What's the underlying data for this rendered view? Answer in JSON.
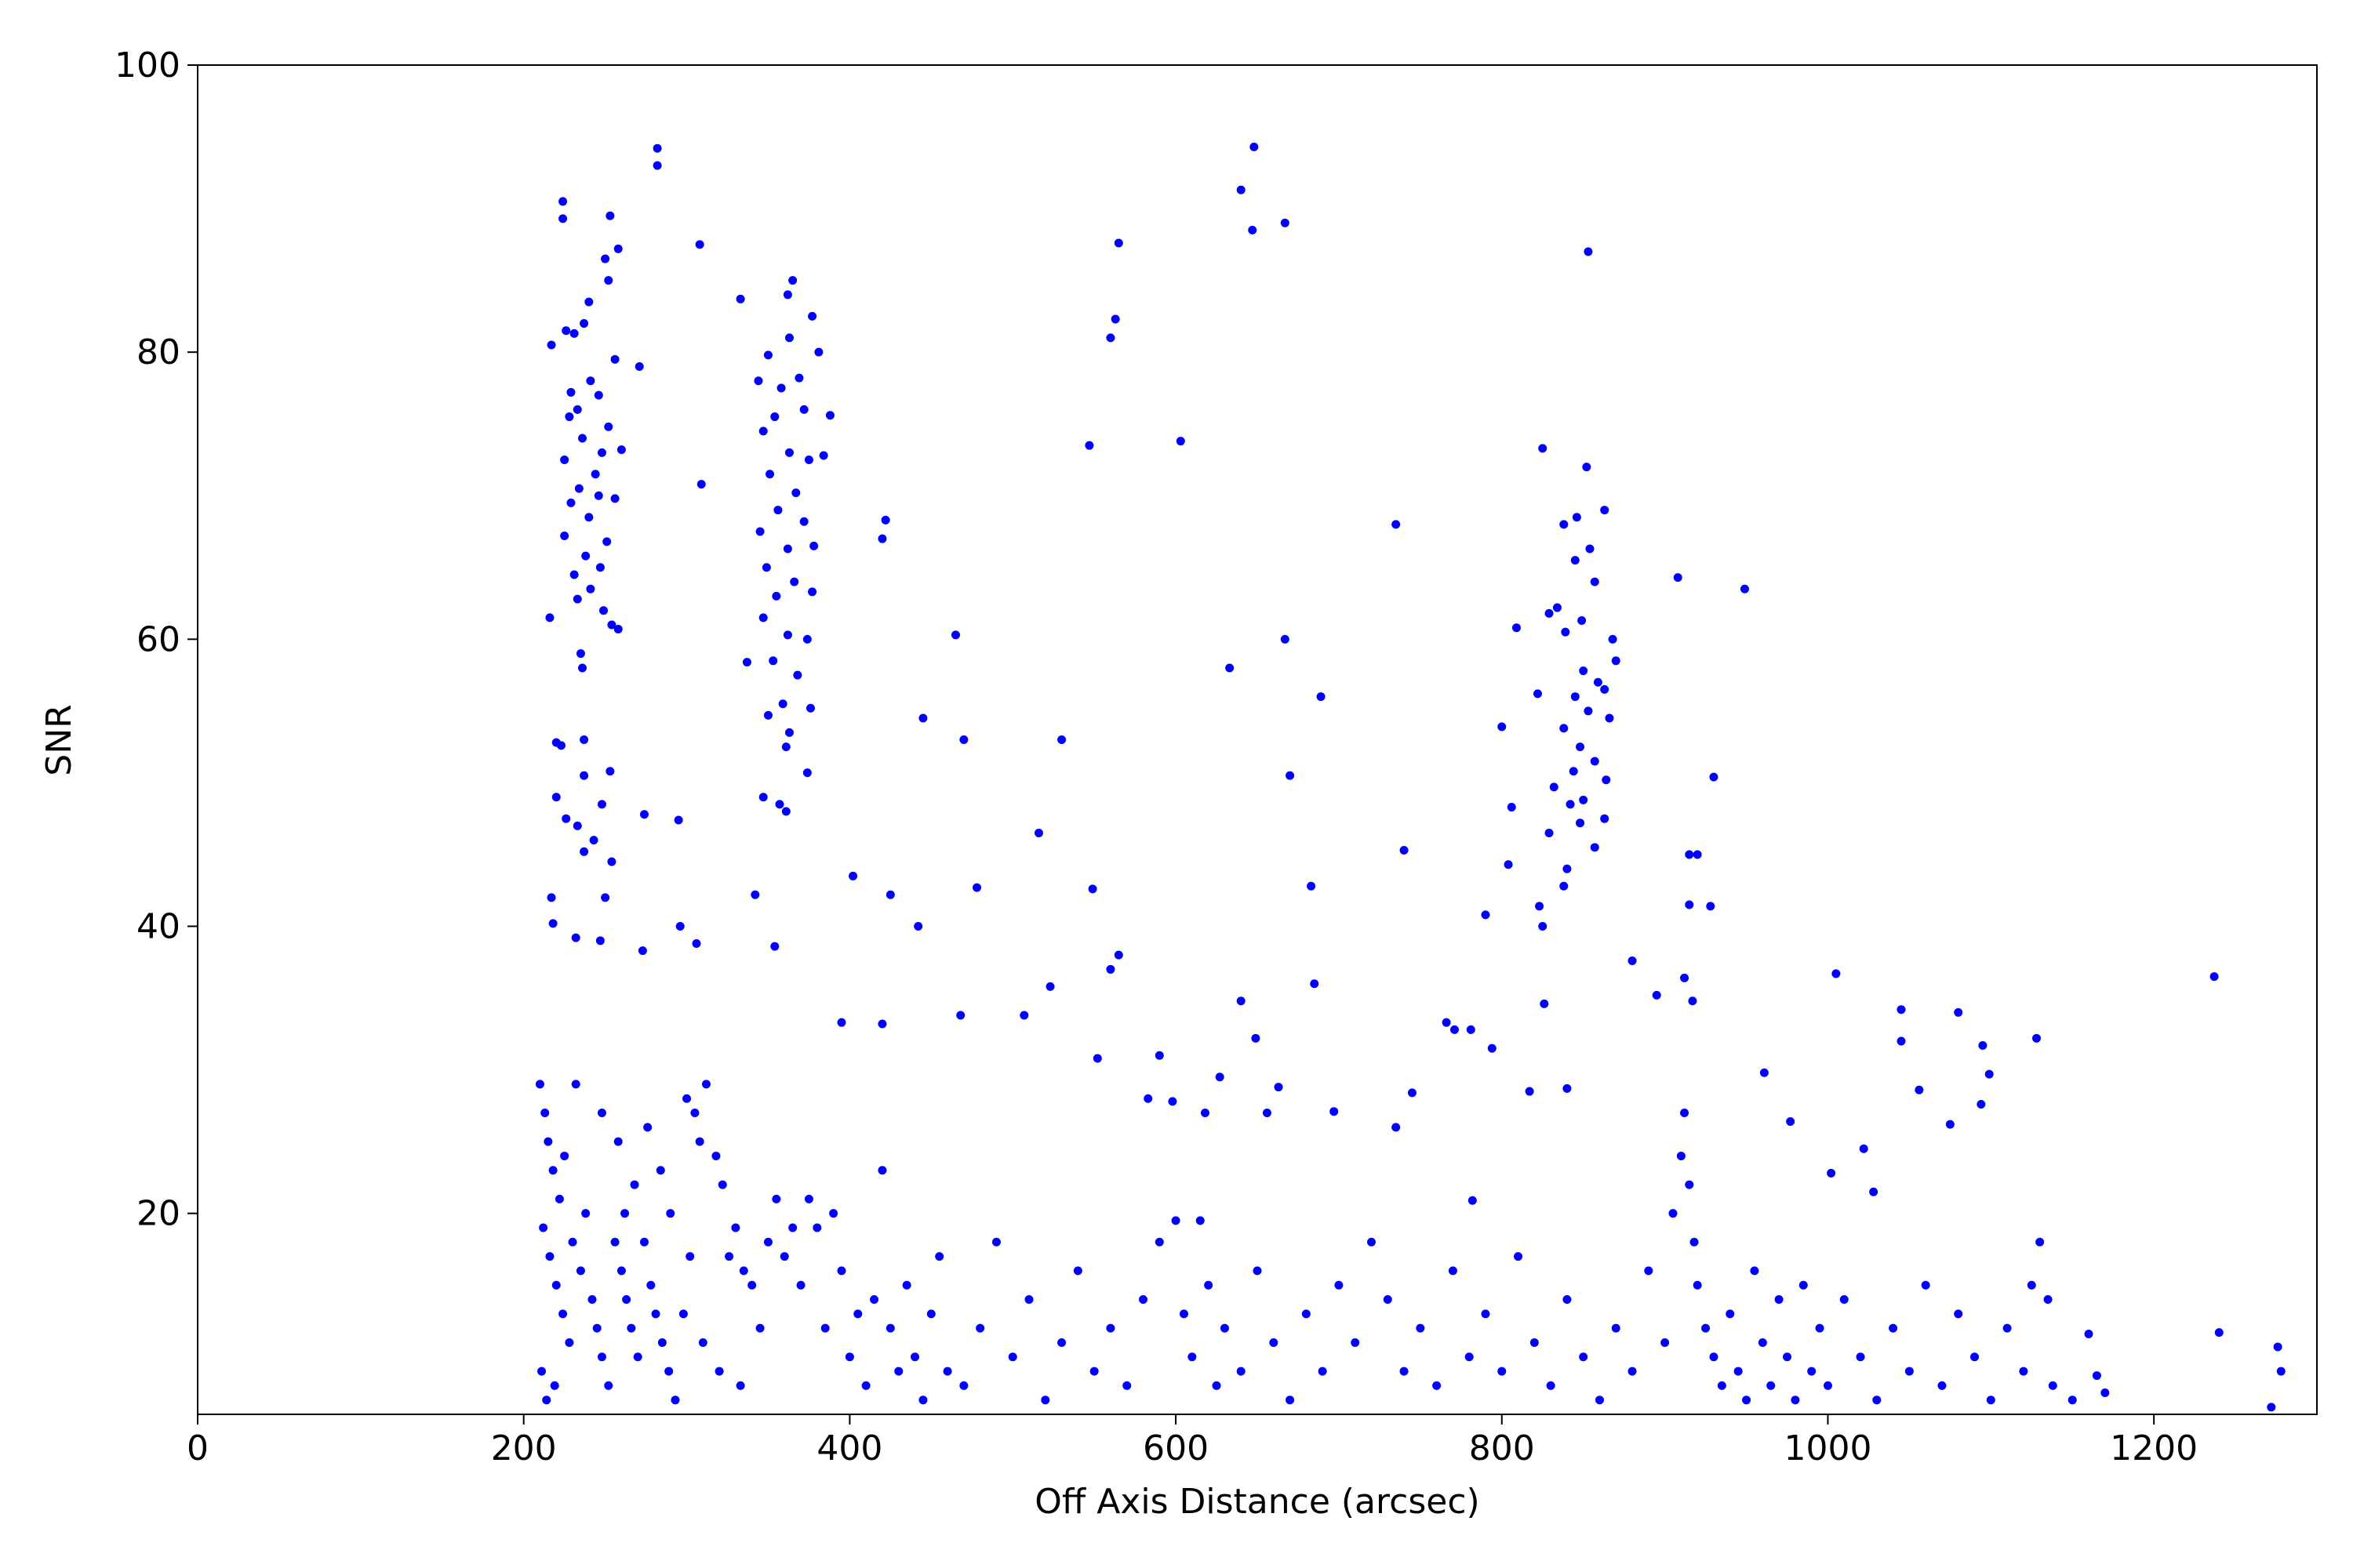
{
  "chart_data": {
    "type": "scatter",
    "x_label": "Off Axis Distance (arcsec)",
    "y_label": "SNR",
    "color": "#0000ff",
    "xlim": [
      0,
      1300
    ],
    "ylim": [
      6,
      100
    ],
    "xticks": [
      0,
      200,
      400,
      600,
      800,
      1000,
      1200
    ],
    "yticks": [
      20,
      40,
      60,
      80,
      100
    ],
    "x": [
      224,
      224,
      253,
      258,
      250,
      252,
      240,
      237,
      226,
      231,
      217,
      256,
      271,
      241,
      229,
      246,
      233,
      228,
      252,
      236,
      248,
      260,
      225,
      244,
      234,
      246,
      229,
      256,
      240,
      225,
      251,
      238,
      247,
      231,
      241,
      233,
      249,
      235,
      236,
      254,
      258,
      216,
      282,
      282,
      220,
      237,
      223,
      253,
      237,
      220,
      226,
      248,
      233,
      274,
      243,
      254,
      237,
      295,
      217,
      250,
      232,
      218,
      247,
      296,
      273,
      306,
      308,
      333,
      365,
      362,
      350,
      363,
      377,
      344,
      358,
      369,
      381,
      354,
      372,
      347,
      388,
      363,
      375,
      351,
      367,
      384,
      309,
      356,
      372,
      345,
      362,
      378,
      349,
      366,
      355,
      377,
      347,
      362,
      374,
      353,
      337,
      368,
      359,
      350,
      376,
      363,
      361,
      374,
      347,
      357,
      361,
      342,
      354,
      825,
      852,
      863,
      846,
      838,
      854,
      845,
      857,
      834,
      829,
      849,
      839,
      868,
      870,
      809,
      850,
      859,
      863,
      845,
      822,
      853,
      866,
      838,
      800,
      848,
      857,
      844,
      832,
      864,
      850,
      842,
      863,
      829,
      848,
      857,
      840,
      804,
      823,
      838,
      825,
      806,
      826,
      465,
      420,
      422,
      445,
      470,
      530,
      516,
      402,
      425,
      478,
      442,
      549,
      560,
      563,
      565,
      547,
      603,
      640,
      648,
      647,
      667,
      633,
      667,
      670,
      689,
      735,
      740,
      683,
      790,
      853,
      908,
      949,
      930,
      915,
      920,
      915,
      928,
      880,
      912,
      895,
      917,
      1005,
      1237,
      1045,
      1045,
      1080,
      1095,
      1128,
      1099,
      1056,
      1094,
      1075,
      1022,
      1028,
      565,
      560,
      523,
      507,
      468,
      420,
      395,
      590,
      552,
      583,
      598,
      618,
      627,
      656,
      663,
      640,
      649,
      685,
      697,
      766,
      781,
      794,
      771,
      817,
      840,
      782,
      745,
      961,
      977,
      1002,
      1240,
      1276,
      1278,
      1272,
      1160,
      1165,
      1170,
      1150,
      210,
      213,
      215,
      218,
      222,
      225,
      212,
      216,
      220,
      224,
      228,
      211,
      214,
      219,
      230,
      235,
      238,
      242,
      245,
      248,
      252,
      256,
      260,
      263,
      266,
      270,
      274,
      278,
      281,
      285,
      289,
      293,
      262,
      268,
      232,
      248,
      258,
      276,
      284,
      290,
      300,
      305,
      308,
      312,
      318,
      322,
      326,
      330,
      335,
      340,
      302,
      298,
      310,
      320,
      333,
      345,
      350,
      355,
      360,
      365,
      370,
      375,
      380,
      385,
      390,
      395,
      400,
      405,
      410,
      415,
      420,
      425,
      430,
      435,
      440,
      445,
      450,
      455,
      460,
      470,
      480,
      490,
      500,
      510,
      520,
      530,
      540,
      550,
      560,
      570,
      580,
      590,
      600,
      605,
      610,
      615,
      620,
      625,
      630,
      640,
      650,
      660,
      670,
      680,
      690,
      700,
      710,
      720,
      730,
      735,
      740,
      750,
      760,
      770,
      780,
      790,
      800,
      810,
      820,
      830,
      840,
      850,
      860,
      870,
      880,
      890,
      900,
      905,
      910,
      912,
      915,
      918,
      920,
      925,
      930,
      935,
      940,
      945,
      950,
      955,
      960,
      965,
      970,
      975,
      980,
      985,
      990,
      995,
      1000,
      1010,
      1020,
      1030,
      1040,
      1050,
      1060,
      1070,
      1080,
      1090,
      1100,
      1110,
      1120,
      1125,
      1130,
      1135,
      1138
    ],
    "values": [
      90.5,
      89.3,
      89.5,
      87.2,
      86.5,
      85,
      83.5,
      82,
      81.5,
      81.3,
      80.5,
      79.5,
      79,
      78,
      77.2,
      77,
      76,
      75.5,
      74.8,
      74,
      73,
      73.2,
      72.5,
      71.5,
      70.5,
      70,
      69.5,
      69.8,
      68.5,
      67.2,
      66.8,
      65.8,
      65,
      64.5,
      63.5,
      62.8,
      62,
      59,
      58,
      61,
      60.7,
      61.5,
      94.2,
      93,
      52.8,
      53,
      52.6,
      50.8,
      50.5,
      49,
      47.5,
      48.5,
      47,
      47.8,
      46,
      44.5,
      45.2,
      47.4,
      42,
      42,
      39.2,
      40.2,
      39,
      40,
      38.3,
      38.8,
      87.5,
      83.7,
      85,
      84,
      79.8,
      81,
      82.5,
      78,
      77.5,
      78.2,
      80,
      75.5,
      76,
      74.5,
      75.6,
      73,
      72.5,
      71.5,
      70.2,
      72.8,
      70.8,
      69,
      68.2,
      67.5,
      66.3,
      66.5,
      65,
      64,
      63,
      63.3,
      61.5,
      60.3,
      60,
      58.5,
      58.4,
      57.5,
      55.5,
      54.7,
      55.2,
      53.5,
      52.5,
      50.7,
      49,
      48.5,
      48,
      42.2,
      38.6,
      73.3,
      72,
      69,
      68.5,
      68,
      66.3,
      65.5,
      64,
      62.2,
      61.8,
      61.3,
      60.5,
      60,
      58.5,
      60.8,
      57.8,
      57,
      56.5,
      56,
      56.2,
      55,
      54.5,
      53.8,
      53.9,
      52.5,
      51.5,
      50.8,
      49.7,
      50.2,
      48.8,
      48.5,
      47.5,
      46.5,
      47.2,
      45.5,
      44,
      44.3,
      41.4,
      42.8,
      40,
      48.3,
      34.6,
      60.3,
      67,
      68.3,
      54.5,
      53,
      53,
      46.5,
      43.5,
      42.2,
      42.7,
      40,
      42.6,
      81,
      82.3,
      87.6,
      73.5,
      73.8,
      91.3,
      94.3,
      88.5,
      89,
      58,
      60,
      50.5,
      56,
      68,
      45.3,
      42.8,
      40.8,
      87,
      64.3,
      63.5,
      50.4,
      45,
      45,
      41.5,
      41.4,
      37.6,
      36.4,
      35.2,
      34.8,
      36.7,
      36.5,
      34.2,
      32,
      34,
      31.7,
      32.2,
      29.7,
      28.6,
      27.6,
      26.2,
      24.5,
      21.5,
      38,
      37,
      35.8,
      33.8,
      33.8,
      33.2,
      33.3,
      31,
      30.8,
      28,
      27.8,
      27,
      29.5,
      27,
      28.8,
      34.8,
      32.2,
      36,
      27.1,
      33.3,
      32.8,
      31.5,
      32.8,
      28.5,
      28.7,
      20.9,
      28.4,
      29.8,
      26.4,
      22.8,
      11.7,
      10.7,
      9,
      6.5,
      11.6,
      8.7,
      7.5,
      7,
      29,
      27,
      25,
      23,
      21,
      24,
      19,
      17,
      15,
      13,
      11,
      9,
      7,
      8,
      18,
      16,
      20,
      14,
      12,
      10,
      8,
      18,
      16,
      14,
      12,
      10,
      18,
      15,
      13,
      11,
      9,
      7,
      20,
      22,
      29,
      27,
      25,
      26,
      23,
      20,
      28,
      27,
      25,
      29,
      24,
      22,
      17,
      19,
      16,
      15,
      17,
      13,
      11,
      9,
      8,
      12,
      18,
      21,
      17,
      19,
      15,
      21,
      19,
      12,
      20,
      16,
      10,
      13,
      8,
      14,
      23,
      12,
      9,
      15,
      10,
      7,
      13,
      17,
      9,
      8,
      12,
      18,
      10,
      14,
      7,
      11,
      16,
      9,
      12,
      8,
      14,
      18,
      19.5,
      13,
      10,
      19.5,
      15,
      8,
      12,
      9,
      16,
      11,
      7,
      13,
      9,
      15,
      11,
      18,
      14,
      26,
      9,
      12,
      8,
      16,
      10,
      13,
      9,
      17,
      11,
      8,
      14,
      10,
      7,
      12,
      9,
      16,
      11,
      20,
      24,
      27,
      22,
      18,
      15,
      12,
      10,
      8,
      13,
      9,
      7,
      16,
      11,
      8,
      14,
      10,
      7,
      15,
      9,
      12,
      8,
      14,
      10,
      7,
      12,
      9,
      15,
      8,
      13,
      10,
      7,
      12,
      9,
      15,
      18,
      14,
      8
    ]
  }
}
